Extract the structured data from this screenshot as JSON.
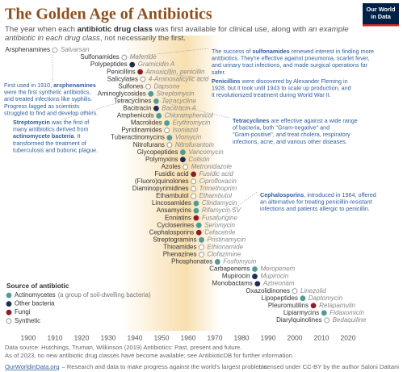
{
  "chart_data": {
    "type": "timeline",
    "title": "The Golden Age of Antibiotics",
    "subtitle": [
      [
        "The year when each ",
        "antibiotic drug class",
        " was first available for clinical use, along with ",
        "an example"
      ],
      [
        "antibiotic in each drug class",
        ", not necessarily the first."
      ]
    ],
    "logo": [
      "Our World",
      "in Data"
    ],
    "categories": [
      "Arsphenamines",
      "Sulfonamides",
      "Polypeptides",
      "Penicillins",
      "Salicylates",
      "Sulfones",
      "Aminoglycosides",
      "Tetracyclines",
      "Bacitracin",
      "Amphenicols",
      "Macrolides",
      "Pyridinamides",
      "Tuberactinomycins",
      "Nitrofurans",
      "Glycopeptides",
      "Polymyxins",
      "Azoles",
      "Fusidic acid",
      "(Fluoro)quinolones",
      "Diaminopyrimidines",
      "Ethambutol",
      "Lincosamides",
      "Ansamycins",
      "Enniatins",
      "Cycloserines",
      "Cephalosporins",
      "Streptogramins",
      "Thioamides",
      "Phenazines",
      "Phosphonates",
      "Carbapenems",
      "Mupirocin",
      "Monobactams",
      "Oxazolidinones",
      "Lipopeptides",
      "Pleuromutilins",
      "Lipiarmycins",
      "Diarylquinolines"
    ],
    "examples": [
      "Salvarsan",
      "Mafenide",
      "Gramicidin A",
      "Amoxicillin, penicillin",
      "4-Aminosalicylic acid",
      "Dapsone",
      "Streptomycin",
      "Tetracycline",
      "Bacitracin A",
      "Chloramphenicol",
      "Erythromycin",
      "Isoniazid",
      "Viomycin",
      "Nitrofurantoin",
      "Vancomycin",
      "Colistin",
      "Metronidazole",
      "Fusidic acid",
      "Ciprofloxacin",
      "Trimethoprim",
      "Ethambutol",
      "Clindamycin",
      "Rifamycin SV",
      "Fusafungine",
      "Seromycin",
      "Cefacetrile",
      "Pristinamycin",
      "Ethionamide",
      "Clofazimine",
      "Fosfomycin",
      "Meropenem",
      "Mupirocin",
      "Aztreonam",
      "Linezolid",
      "Daptomycin",
      "Retapamulin",
      "Fidaxomicin",
      "Bedaquiline"
    ],
    "values": [
      1910,
      1936,
      1939,
      1942,
      1943,
      1945,
      1946,
      1948,
      1948,
      1949,
      1952,
      1952,
      1953,
      1953,
      1958,
      1958,
      1959,
      1962,
      1962,
      1962,
      1962,
      1963,
      1963,
      1963,
      1964,
      1964,
      1965,
      1965,
      1965,
      1971,
      1985,
      1985,
      1986,
      2000,
      2003,
      2007,
      2011,
      2012
    ],
    "source": [
      "Synthetic",
      "Synthetic",
      "Other bacteria",
      "Fungi",
      "Synthetic",
      "Synthetic",
      "Actinomycetes",
      "Actinomycetes",
      "Other bacteria",
      "Actinomycetes",
      "Actinomycetes",
      "Synthetic",
      "Actinomycetes",
      "Synthetic",
      "Actinomycetes",
      "Other bacteria",
      "Synthetic",
      "Fungi",
      "Synthetic",
      "Synthetic",
      "Synthetic",
      "Actinomycetes",
      "Actinomycetes",
      "Fungi",
      "Actinomycetes",
      "Fungi",
      "Actinomycetes",
      "Synthetic",
      "Synthetic",
      "Actinomycetes",
      "Actinomycetes",
      "Other bacteria",
      "Other bacteria",
      "Synthetic",
      "Actinomycetes",
      "Fungi",
      "Actinomycetes",
      "Synthetic"
    ],
    "legend": {
      "title": "Source of antibiotic",
      "items": [
        {
          "name": "Actinomycetes",
          "note": "(a group of soil-dwelling bacteria)",
          "color": "#4f9c99"
        },
        {
          "name": "Other bacteria",
          "color": "#1d2b57"
        },
        {
          "name": "Fungi",
          "color": "#8c1c2e"
        },
        {
          "name": "Synthetic",
          "color": "#ffffff"
        }
      ]
    },
    "highlight_range": [
      1935,
      1972
    ],
    "xlim": [
      1890,
      2030
    ],
    "xticks": [
      1900,
      1910,
      1920,
      1930,
      1940,
      1950,
      1960,
      1970,
      1980,
      1990,
      2000,
      2010,
      2020
    ],
    "annotations": [
      {
        "lines": [
          [
            "The success of ",
            {
              "bold": "sulfonamides"
            },
            " renewed interest in finding more"
          ],
          [
            "antibiotics. They're effective against pneumonia, scarlet fever,"
          ],
          [
            "and urinary tract infections, and made surgical operations far"
          ],
          [
            "safer."
          ]
        ]
      },
      {
        "lines": [
          [
            {
              "bold": "Penicillins"
            },
            " were discovered by Alexander Fleming in"
          ],
          [
            "1928, but it took until 1943 to scale up production, and"
          ],
          [
            "it revolutionized treatment during World War II."
          ]
        ]
      },
      {
        "lines": [
          [
            {
              "bold": "Tetracyclines"
            },
            " are effective against a wide range"
          ],
          [
            "of bacteria, both \"Gram-negative\" and"
          ],
          [
            "\"Gram-positive\", and treat cholera, respiratory"
          ],
          [
            "infections, acne, and various other diseases."
          ]
        ]
      },
      {
        "lines": [
          [
            {
              "bold": "Cephalosporins"
            },
            ", introduced in 1964, offered"
          ],
          [
            "an alternative for treating penicillin-resistant"
          ],
          [
            "infections and patients allergic to penicillin."
          ]
        ]
      },
      {
        "lines": [
          [
            "First used in 1910, ",
            {
              "bold": "arsphenamines"
            }
          ],
          [
            "were the first synthetic antibiotics,"
          ],
          [
            "and treated infections like syphilis."
          ],
          [
            "Progress lagged as scientists"
          ],
          [
            "struggled to find and develop others."
          ]
        ]
      },
      {
        "lines": [
          [
            {
              "bold": "Streptomycin"
            },
            " was the first of"
          ],
          [
            "many antibiotics derived from"
          ],
          [
            {
              "bold": "actinomycete bacteria"
            },
            ". It"
          ],
          [
            "transformed the treatment of"
          ],
          [
            "tuberculosis and bubonic plague."
          ]
        ]
      }
    ],
    "footer": [
      "Data source: Hutchings, Truman, Wilkinson (2019) Antibiotics: Past, present and future.",
      "As of 2023, no new antibiotic drug classes have become available; see AntibioticDB for further information.",
      "OurWorldinData.org",
      "– Research and data to make progress against the world's largest problems.",
      "Licensed under CC-BY by the author Saloni Dattani"
    ]
  }
}
